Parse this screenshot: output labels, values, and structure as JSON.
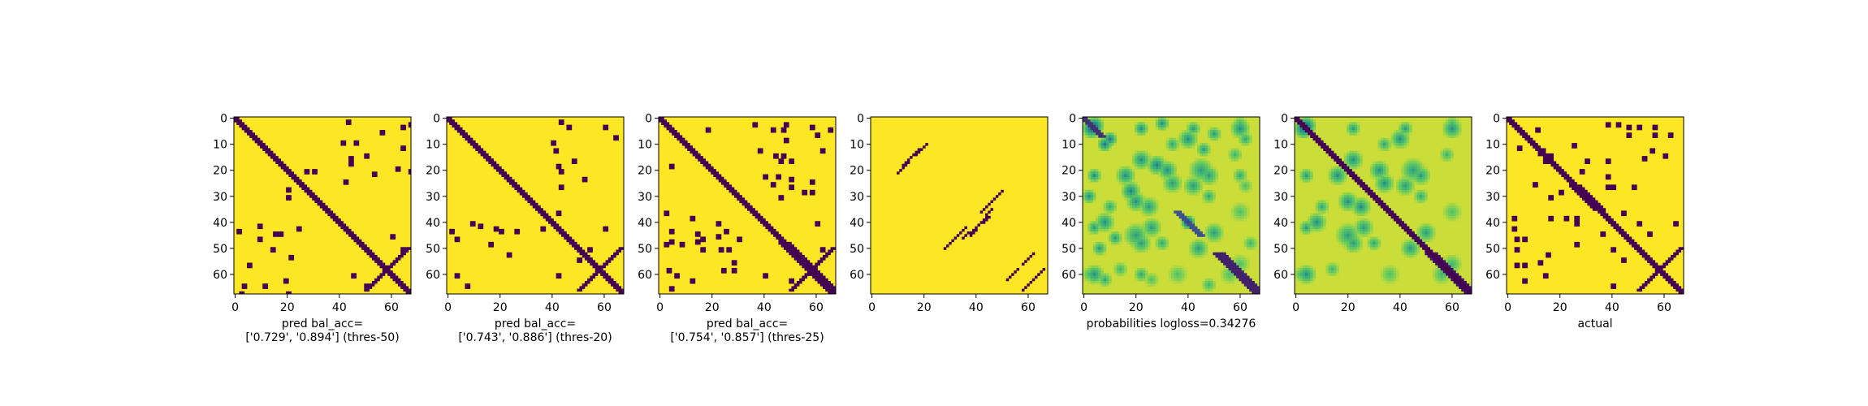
{
  "chart_data": {
    "type": "heatmap",
    "panels": [
      {
        "id": "pred-thres-50",
        "kind": "binary",
        "xlabel_lines": [
          "pred bal_acc=",
          "['0.729', '0.894'] (thres-50)"
        ],
        "blobs": [
          [
            43,
            1
          ],
          [
            41,
            9
          ],
          [
            46,
            9
          ],
          [
            15,
            44
          ],
          [
            17,
            44
          ],
          [
            24,
            42
          ],
          [
            21,
            53
          ],
          [
            3,
            64
          ],
          [
            19,
            62
          ],
          [
            2,
            67
          ],
          [
            20,
            67
          ],
          [
            11,
            64
          ],
          [
            60,
            45
          ],
          [
            64,
            50
          ],
          [
            27,
            20
          ],
          [
            20,
            30
          ],
          [
            56,
            5
          ],
          [
            50,
            14
          ]
        ],
        "bands": [
          {
            "off": 1,
            "from": 55,
            "to": 68
          }
        ]
      },
      {
        "id": "pred-thres-20",
        "kind": "binary",
        "xlabel_lines": [
          "pred bal_acc=",
          "['0.743', '0.886'] (thres-20)"
        ],
        "blobs": [
          [
            43,
            1
          ],
          [
            46,
            3
          ],
          [
            40,
            9
          ],
          [
            41,
            12
          ],
          [
            18,
            42
          ],
          [
            20,
            43
          ],
          [
            26,
            43
          ],
          [
            36,
            42
          ],
          [
            3,
            60
          ],
          [
            7,
            64
          ],
          [
            16,
            48
          ],
          [
            23,
            52
          ],
          [
            50,
            54
          ],
          [
            60,
            42
          ]
        ],
        "bands": [
          {
            "off": 1,
            "from": 46,
            "to": 68
          }
        ]
      },
      {
        "id": "pred-thres-25",
        "kind": "binary",
        "xlabel_lines": [
          "pred bal_acc=",
          "['0.754', '0.857'] (thres-25)"
        ],
        "blobs": [
          [
            18,
            4
          ],
          [
            36,
            2
          ],
          [
            43,
            4
          ],
          [
            48,
            2
          ],
          [
            58,
            3
          ],
          [
            65,
            4
          ],
          [
            44,
            14
          ],
          [
            38,
            12
          ],
          [
            46,
            16
          ],
          [
            50,
            26
          ],
          [
            58,
            28
          ],
          [
            25,
            43
          ],
          [
            22,
            45
          ],
          [
            4,
            47
          ],
          [
            8,
            48
          ],
          [
            14,
            47
          ],
          [
            23,
            50
          ],
          [
            28,
            55
          ],
          [
            6,
            60
          ],
          [
            12,
            62
          ],
          [
            16,
            50
          ],
          [
            24,
            58
          ],
          [
            30,
            46
          ],
          [
            40,
            22
          ],
          [
            60,
            40
          ],
          [
            62,
            50
          ]
        ],
        "bands": [
          {
            "off": 1,
            "from": 0,
            "to": 10
          },
          {
            "off": 1,
            "from": 24,
            "to": 44
          },
          {
            "off": 2,
            "from": 48,
            "to": 68
          }
        ]
      },
      {
        "id": "sparse-pairs",
        "kind": "sparse",
        "xlabel_lines": [],
        "segments": [
          [
            10,
            21,
            18,
            12
          ],
          [
            28,
            50,
            36,
            42
          ],
          [
            38,
            45,
            46,
            35
          ],
          [
            52,
            62,
            56,
            58
          ],
          [
            60,
            64,
            66,
            58
          ]
        ]
      },
      {
        "id": "probabilities",
        "kind": "prob",
        "xlabel_lines": [
          "probabilities logloss=0.34276"
        ],
        "blobs": [
          [
            4,
            3,
            4,
            0.3
          ],
          [
            8,
            10,
            3,
            0.4
          ],
          [
            22,
            4,
            3,
            0.5
          ],
          [
            30,
            2,
            3,
            0.5
          ],
          [
            34,
            10,
            3,
            0.6
          ],
          [
            42,
            4,
            3,
            0.55
          ],
          [
            50,
            6,
            3,
            0.55
          ],
          [
            60,
            2,
            3,
            0.65
          ],
          [
            16,
            22,
            4,
            0.5
          ],
          [
            18,
            28,
            4,
            0.45
          ],
          [
            20,
            32,
            4,
            0.5
          ],
          [
            34,
            25,
            4,
            0.55
          ],
          [
            42,
            26,
            4,
            0.55
          ],
          [
            40,
            40,
            3,
            0.2
          ],
          [
            48,
            22,
            4,
            0.55
          ],
          [
            8,
            40,
            4,
            0.5
          ],
          [
            12,
            46,
            3,
            0.55
          ],
          [
            20,
            45,
            5,
            0.55
          ],
          [
            4,
            60,
            4,
            0.5
          ],
          [
            14,
            58,
            3,
            0.65
          ],
          [
            30,
            48,
            3,
            0.6
          ],
          [
            44,
            50,
            4,
            0.55
          ],
          [
            60,
            22,
            3,
            0.6
          ],
          [
            62,
            8,
            3,
            0.6
          ],
          [
            26,
            62,
            3,
            0.7
          ],
          [
            36,
            60,
            4,
            0.7
          ],
          [
            56,
            60,
            4,
            0.7
          ],
          [
            64,
            48,
            3,
            0.65
          ]
        ],
        "bands": [
          {
            "off": 1,
            "from": 0,
            "to": 8,
            "v": 0.15
          },
          {
            "off": 2,
            "from": 52,
            "to": 68,
            "v": 0.1
          },
          {
            "off": 1,
            "from": 36,
            "to": 46,
            "v": 0.25
          }
        ]
      },
      {
        "id": "probabilities-diag",
        "kind": "prob",
        "xlabel_lines": [],
        "blobs": [
          [
            4,
            3,
            4,
            0.3
          ],
          [
            22,
            4,
            3,
            0.55
          ],
          [
            34,
            10,
            3,
            0.6
          ],
          [
            42,
            4,
            3,
            0.55
          ],
          [
            60,
            2,
            3,
            0.65
          ],
          [
            16,
            22,
            4,
            0.5
          ],
          [
            20,
            32,
            4,
            0.5
          ],
          [
            34,
            25,
            4,
            0.5
          ],
          [
            42,
            26,
            4,
            0.55
          ],
          [
            48,
            22,
            4,
            0.55
          ],
          [
            8,
            40,
            4,
            0.5
          ],
          [
            20,
            45,
            5,
            0.55
          ],
          [
            4,
            60,
            4,
            0.5
          ],
          [
            14,
            58,
            3,
            0.65
          ],
          [
            30,
            48,
            3,
            0.6
          ],
          [
            44,
            50,
            4,
            0.55
          ],
          [
            36,
            60,
            4,
            0.7
          ],
          [
            56,
            60,
            4,
            0.65
          ]
        ],
        "bands": [
          {
            "off": 1,
            "from": 0,
            "to": 68,
            "v": 0.0
          },
          {
            "off": 2,
            "from": 52,
            "to": 68,
            "v": 0.05
          }
        ]
      },
      {
        "id": "actual",
        "kind": "binary",
        "xlabel_lines": [
          "actual"
        ],
        "blobs": [
          [
            11,
            4
          ],
          [
            13,
            12
          ],
          [
            38,
            2
          ],
          [
            46,
            3
          ],
          [
            56,
            3
          ],
          [
            62,
            6
          ],
          [
            14,
            16
          ],
          [
            20,
            20
          ],
          [
            10,
            25
          ],
          [
            16,
            30
          ],
          [
            22,
            38
          ],
          [
            26,
            40
          ],
          [
            46,
            6
          ],
          [
            55,
            12
          ],
          [
            2,
            42
          ],
          [
            3,
            50
          ],
          [
            6,
            56
          ],
          [
            15,
            52
          ],
          [
            16,
            38
          ],
          [
            28,
            20
          ],
          [
            26,
            48
          ],
          [
            36,
            44
          ],
          [
            40,
            50
          ],
          [
            44,
            54
          ],
          [
            38,
            26
          ],
          [
            60,
            14
          ],
          [
            64,
            40
          ]
        ],
        "bands": [
          {
            "off": 1,
            "from": 0,
            "to": 60
          },
          {
            "off": 2,
            "from": 26,
            "to": 36
          }
        ]
      }
    ],
    "matrix_size": 68,
    "xticks": [
      0,
      20,
      40,
      60
    ],
    "yticks": [
      0,
      10,
      20,
      30,
      40,
      50,
      60
    ],
    "colormap": "viridis",
    "colors": {
      "low": "#440154",
      "high": "#fde725"
    }
  }
}
